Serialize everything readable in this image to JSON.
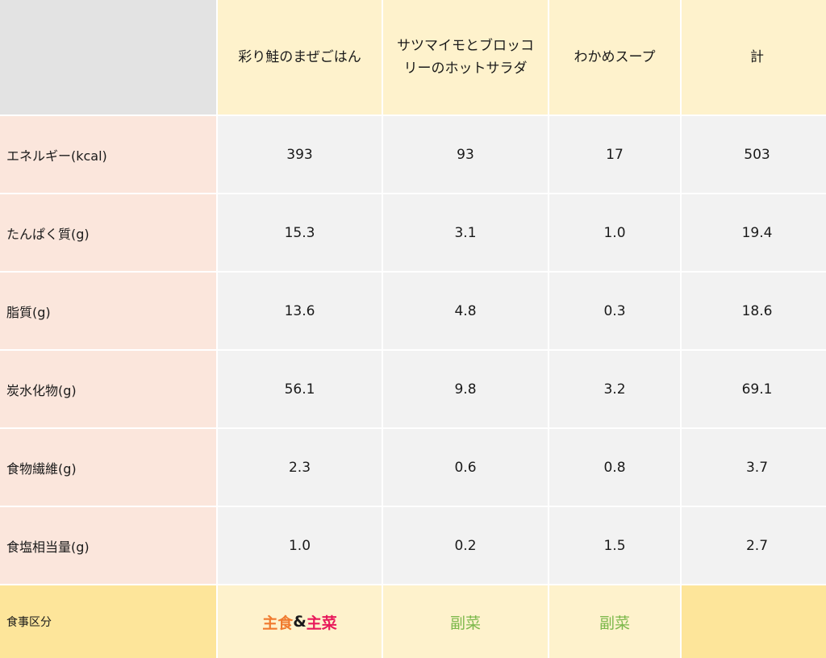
{
  "columns": [
    "彩り鮭のまぜごはん",
    "サツマイモとブロッコリーのホットサラダ",
    "わかめスープ",
    "計"
  ],
  "rows": [
    {
      "label": "エネルギー(kcal)",
      "values": [
        "393",
        "93",
        "17",
        "503"
      ]
    },
    {
      "label": "たんぱく質(g)",
      "values": [
        "15.3",
        "3.1",
        "1.0",
        "19.4"
      ]
    },
    {
      "label": "脂質(g)",
      "values": [
        "13.6",
        "4.8",
        "0.3",
        "18.6"
      ]
    },
    {
      "label": "炭水化物(g)",
      "values": [
        "56.1",
        "9.8",
        "3.2",
        "69.1"
      ]
    },
    {
      "label": "食物繊維(g)",
      "values": [
        "2.3",
        "0.6",
        "0.8",
        "3.7"
      ]
    },
    {
      "label": "食塩相当量(g)",
      "values": [
        "1.0",
        "0.2",
        "1.5",
        "2.7"
      ]
    }
  ],
  "category": {
    "label": "食事区分",
    "col1": {
      "part1": "主食",
      "amp": "&",
      "part2": "主菜"
    },
    "col2": "副菜",
    "col3": "副菜",
    "col4": ""
  },
  "colors": {
    "shushoku": "#f07a2e",
    "shusai": "#e81a5b",
    "fukusai": "#7bb84a"
  }
}
